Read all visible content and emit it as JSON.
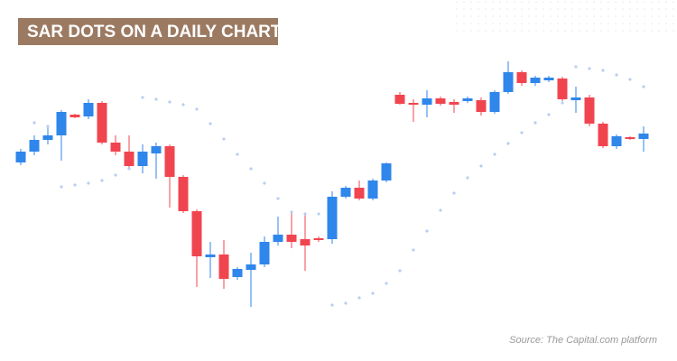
{
  "chart_data": {
    "type": "candlestick",
    "title": "SAR DOTS ON A DAILY CHART",
    "source": "Source: The Capital.com platform",
    "ylim": [
      40,
      350
    ],
    "up_color": "#2f86eb",
    "down_color": "#f0454f",
    "open": [
      220,
      232,
      245,
      250,
      273,
      271,
      286,
      242,
      232,
      216,
      230,
      238,
      204,
      166,
      115,
      118,
      93,
      101,
      107,
      132,
      140,
      135,
      136,
      135,
      182,
      192,
      180,
      200,
      295,
      286,
      284,
      291,
      287,
      288,
      289,
      276,
      298,
      320,
      308,
      311,
      313,
      289,
      292,
      263,
      238,
      248,
      246
    ],
    "close": [
      232,
      245,
      250,
      276,
      270,
      286,
      242,
      232,
      216,
      232,
      238,
      204,
      166,
      116,
      118,
      91,
      102,
      107,
      132,
      140,
      132,
      128,
      134,
      182,
      192,
      180,
      200,
      219,
      285,
      284,
      291,
      285,
      284,
      291,
      276,
      298,
      320,
      308,
      314,
      314,
      290,
      292,
      263,
      238,
      249,
      246,
      252
    ],
    "high": [
      235,
      250,
      260,
      278,
      274,
      290,
      288,
      250,
      250,
      240,
      242,
      240,
      206,
      168,
      132,
      134,
      104,
      120,
      138,
      160,
      165,
      162,
      138,
      188,
      194,
      200,
      202,
      220,
      298,
      290,
      300,
      293,
      290,
      293,
      292,
      300,
      332,
      322,
      316,
      316,
      315,
      304,
      295,
      265,
      251,
      249,
      260
    ],
    "low": [
      217,
      228,
      240,
      222,
      269,
      268,
      240,
      228,
      212,
      208,
      202,
      170,
      164,
      82,
      92,
      80,
      90,
      60,
      104,
      128,
      125,
      100,
      132,
      130,
      180,
      178,
      178,
      198,
      284,
      265,
      270,
      283,
      275,
      286,
      272,
      274,
      296,
      305,
      305,
      309,
      288,
      275,
      260,
      236,
      235,
      245,
      232
    ],
    "sar": {
      "color": "#b9cdf2",
      "values": [
        null,
        264,
        260,
        193,
        195,
        197,
        200,
        206,
        213,
        292,
        290,
        287,
        284,
        279,
        263,
        246,
        229,
        213,
        197,
        180,
        165,
        163,
        163,
        62,
        64,
        70,
        75,
        86,
        100,
        123,
        144,
        167,
        186,
        203,
        216,
        229,
        241,
        253,
        264,
        273,
        286,
        326,
        324,
        322,
        317,
        312,
        304
      ]
    }
  }
}
